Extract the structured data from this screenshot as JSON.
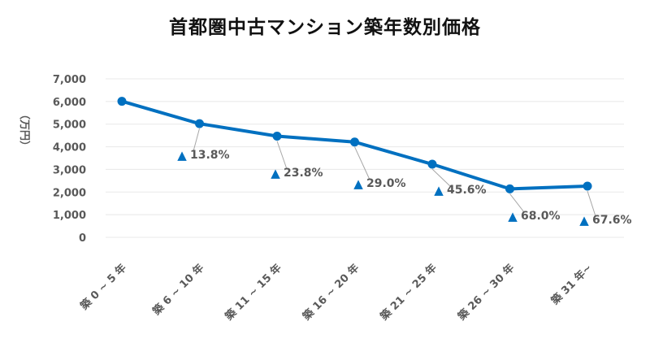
{
  "chart_data": {
    "type": "line",
    "title": "首都圏中古マンション築年数別価格",
    "ylabel": "（万円）",
    "xlabel": "",
    "ylim": [
      0,
      7000
    ],
    "yticks": [
      "0",
      "1,000",
      "2,000",
      "3,000",
      "4,000",
      "5,000",
      "6,000",
      "7,000"
    ],
    "grid": true,
    "legend": "none",
    "categories": [
      "築 0 ~ 5 年",
      "築 6 ~ 10 年",
      "築 11 ~ 15 年",
      "築 16 ~ 20 年",
      "築 21 ~ 25 年",
      "築 26 ~ 30 年",
      "築 31 年~"
    ],
    "series": [
      {
        "values": [
          6010,
          5020,
          4470,
          4210,
          3230,
          2140,
          2260
        ]
      }
    ],
    "annotations": [
      {
        "text": "13.8%",
        "index": 1
      },
      {
        "text": "23.8%",
        "index": 2
      },
      {
        "text": "29.0%",
        "index": 3
      },
      {
        "text": "45.6%",
        "index": 4
      },
      {
        "text": "68.0%",
        "index": 5
      },
      {
        "text": "67.6%",
        "index": 6
      }
    ],
    "marker_symbol": "▲",
    "colors": {
      "line": "#0070C0",
      "grid": "#E8E8E8",
      "text": "#595959"
    }
  }
}
